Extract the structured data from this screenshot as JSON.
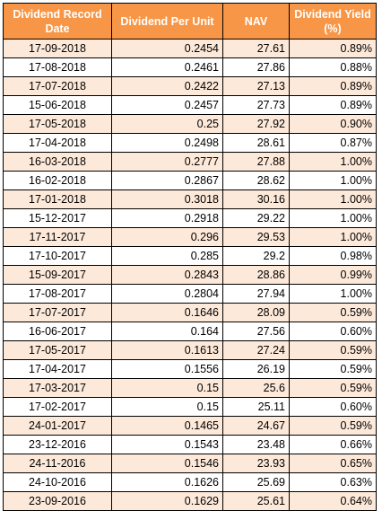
{
  "headers": [
    "Dividend Record Date",
    "Dividend Per Unit",
    "NAV",
    "Dividend Yield (%)"
  ],
  "rows": [
    [
      "17-09-2018",
      "0.2454",
      "27.61",
      "0.89%"
    ],
    [
      "17-08-2018",
      "0.2461",
      "27.86",
      "0.88%"
    ],
    [
      "17-07-2018",
      "0.2422",
      "27.13",
      "0.89%"
    ],
    [
      "15-06-2018",
      "0.2457",
      "27.73",
      "0.89%"
    ],
    [
      "17-05-2018",
      "0.25",
      "27.92",
      "0.90%"
    ],
    [
      "17-04-2018",
      "0.2498",
      "28.61",
      "0.87%"
    ],
    [
      "16-03-2018",
      "0.2777",
      "27.88",
      "1.00%"
    ],
    [
      "16-02-2018",
      "0.2867",
      "28.62",
      "1.00%"
    ],
    [
      "17-01-2018",
      "0.3018",
      "30.16",
      "1.00%"
    ],
    [
      "15-12-2017",
      "0.2918",
      "29.22",
      "1.00%"
    ],
    [
      "17-11-2017",
      "0.296",
      "29.53",
      "1.00%"
    ],
    [
      "17-10-2017",
      "0.285",
      "29.2",
      "0.98%"
    ],
    [
      "15-09-2017",
      "0.2843",
      "28.86",
      "0.99%"
    ],
    [
      "17-08-2017",
      "0.2804",
      "27.94",
      "1.00%"
    ],
    [
      "17-07-2017",
      "0.1646",
      "28.09",
      "0.59%"
    ],
    [
      "16-06-2017",
      "0.164",
      "27.56",
      "0.60%"
    ],
    [
      "17-05-2017",
      "0.1613",
      "27.24",
      "0.59%"
    ],
    [
      "17-04-2017",
      "0.1556",
      "26.19",
      "0.59%"
    ],
    [
      "17-03-2017",
      "0.15",
      "25.6",
      "0.59%"
    ],
    [
      "17-02-2017",
      "0.15",
      "25.11",
      "0.60%"
    ],
    [
      "24-01-2017",
      "0.1465",
      "24.67",
      "0.59%"
    ],
    [
      "23-12-2016",
      "0.1543",
      "23.48",
      "0.66%"
    ],
    [
      "24-11-2016",
      "0.1546",
      "23.93",
      "0.65%"
    ],
    [
      "24-10-2016",
      "0.1626",
      "25.69",
      "0.63%"
    ],
    [
      "23-09-2016",
      "0.1629",
      "25.61",
      "0.64%"
    ]
  ],
  "colors": {
    "header_bg": "#f79646",
    "header_text": "#ffffff",
    "stripe_bg": "#fde9d9",
    "plain_bg": "#ffffff",
    "border": "#000000"
  }
}
